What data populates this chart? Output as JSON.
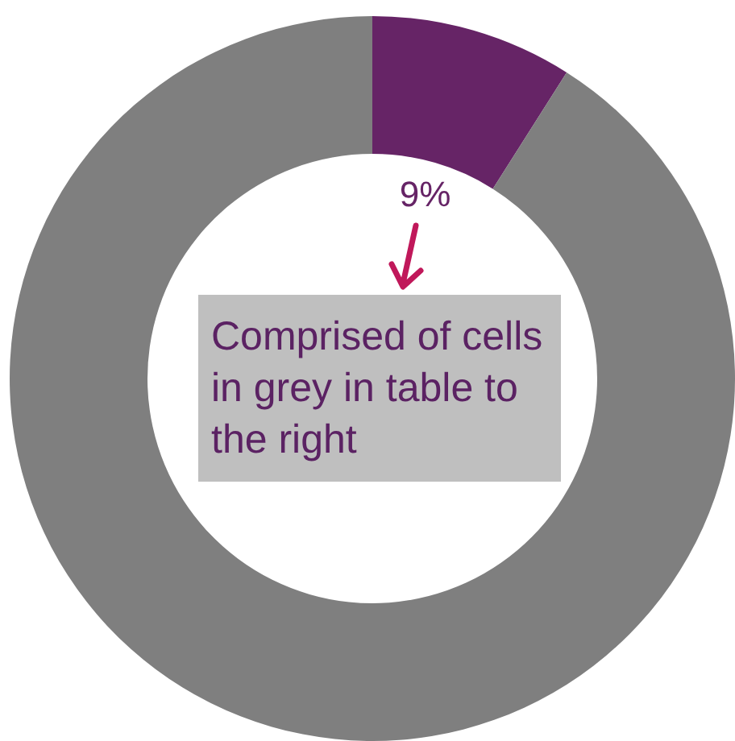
{
  "chart_data": {
    "type": "donut",
    "categories": [
      null,
      null
    ],
    "values": [
      9,
      91
    ],
    "colors": [
      "#662466",
      "#7f7f7f"
    ],
    "value_labels": [
      "9%",
      null
    ],
    "legend": false,
    "annotations": [
      "Comprised of cells in grey in table to the right"
    ]
  }
}
